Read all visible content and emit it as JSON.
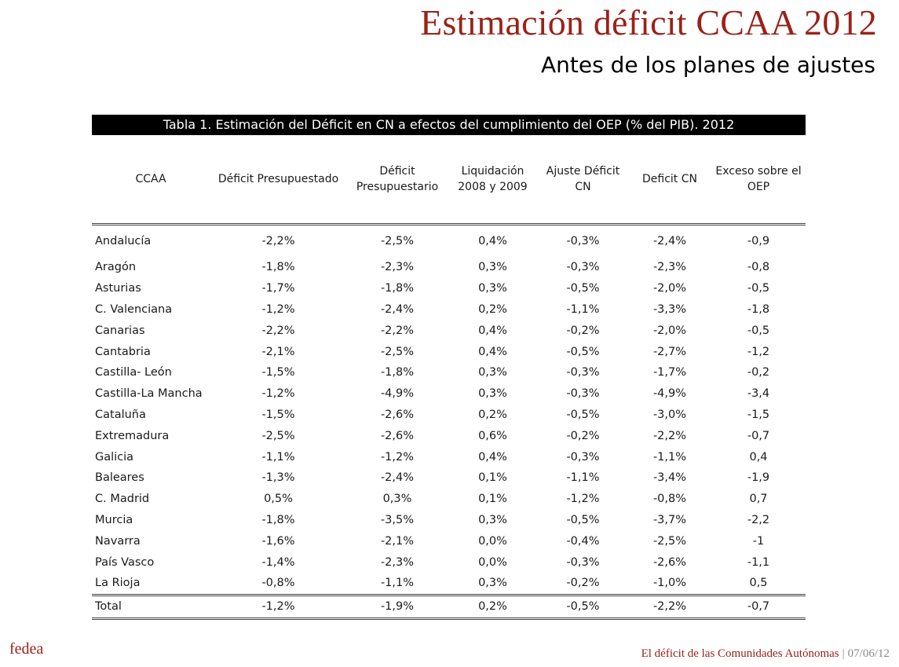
{
  "slide": {
    "title": "Estimación déficit CCAA 2012",
    "subtitle": "Antes de los planes de ajustes"
  },
  "table": {
    "caption": "Tabla 1. Estimación del Déficit en CN a efectos del cumplimiento del OEP (% del PIB). 2012",
    "headers": [
      "CCAA",
      "Déficit Presupuestado",
      "Déficit Presupuestario",
      "Liquidación 2008 y 2009",
      "Ajuste Déficit CN",
      "Deficit CN",
      "Exceso sobre el OEP"
    ],
    "rows": [
      [
        "Andalucía",
        "-2,2%",
        "-2,5%",
        "0,4%",
        "-0,3%",
        "-2,4%",
        "-0,9"
      ],
      [
        "Aragón",
        "-1,8%",
        "-2,3%",
        "0,3%",
        "-0,3%",
        "-2,3%",
        "-0,8"
      ],
      [
        "Asturias",
        "-1,7%",
        "-1,8%",
        "0,3%",
        "-0,5%",
        "-2,0%",
        "-0,5"
      ],
      [
        "C. Valenciana",
        "-1,2%",
        "-2,4%",
        "0,2%",
        "-1,1%",
        "-3,3%",
        "-1,8"
      ],
      [
        "Canarias",
        "-2,2%",
        "-2,2%",
        "0,4%",
        "-0,2%",
        "-2,0%",
        "-0,5"
      ],
      [
        "Cantabria",
        "-2,1%",
        "-2,5%",
        "0,4%",
        "-0,5%",
        "-2,7%",
        "-1,2"
      ],
      [
        "Castilla- León",
        "-1,5%",
        "-1,8%",
        "0,3%",
        "-0,3%",
        "-1,7%",
        "-0,2"
      ],
      [
        "Castilla-La Mancha",
        "-1,2%",
        "-4,9%",
        "0,3%",
        "-0,3%",
        "-4,9%",
        "-3,4"
      ],
      [
        "Cataluña",
        "-1,5%",
        "-2,6%",
        "0,2%",
        "-0,5%",
        "-3,0%",
        "-1,5"
      ],
      [
        "Extremadura",
        "-2,5%",
        "-2,6%",
        "0,6%",
        "-0,2%",
        "-2,2%",
        "-0,7"
      ],
      [
        "Galicia",
        "-1,1%",
        "-1,2%",
        "0,4%",
        "-0,3%",
        "-1,1%",
        "0,4"
      ],
      [
        "Baleares",
        "-1,3%",
        "-2,4%",
        "0,1%",
        "-1,1%",
        "-3,4%",
        "-1,9"
      ],
      [
        "C. Madrid",
        "0,5%",
        "0,3%",
        "0,1%",
        "-1,2%",
        "-0,8%",
        "0,7"
      ],
      [
        "Murcia",
        "-1,8%",
        "-3,5%",
        "0,3%",
        "-0,5%",
        "-3,7%",
        "-2,2"
      ],
      [
        "Navarra",
        "-1,6%",
        "-2,1%",
        "0,0%",
        "-0,4%",
        "-2,5%",
        "-1"
      ],
      [
        "País Vasco",
        "-1,4%",
        "-2,3%",
        "0,0%",
        "-0,3%",
        "-2,6%",
        "-1,1"
      ],
      [
        "La Rioja",
        "-0,8%",
        "-1,1%",
        "0,3%",
        "-0,2%",
        "-1,0%",
        "0,5"
      ]
    ],
    "total": [
      "Total",
      "-1,2%",
      "-1,9%",
      "0,2%",
      "-0,5%",
      "-2,2%",
      "-0,7"
    ]
  },
  "footer": {
    "brand": "fedea",
    "presentation": "El déficit de las Comunidades Autónomas",
    "separator": "|",
    "date": "07/06/12"
  },
  "colors": {
    "accent": "#9a2218",
    "caption_bg": "#000000"
  }
}
